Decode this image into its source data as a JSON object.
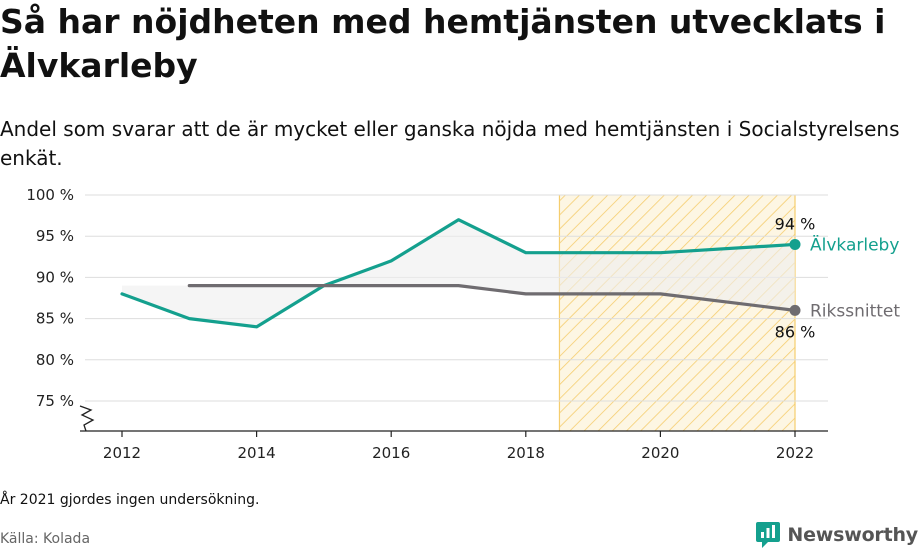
{
  "title": "Så har nöjdheten med hemtjänsten utvecklats i Älvkarleby",
  "subtitle": "Andel som svarar att de är mycket eller ganska nöjda med hemtjänsten i Socialstyrelsens enkät.",
  "note": "År 2021 gjordes ingen undersökning.",
  "source": "Källa: Kolada",
  "brand": "Newsworthy",
  "colors": {
    "alvkarleby": "#14a08e",
    "riket": "#6f6c70",
    "fill": "#eeeeee",
    "highlight_stripe": "#f5cd6e",
    "highlight_bg": "#fdf6e3",
    "grid": "#dddddd",
    "axis": "#222222"
  },
  "chart_data": {
    "type": "line",
    "x_ticks": [
      2012,
      2014,
      2016,
      2018,
      2020,
      2022
    ],
    "y_ticks": [
      75,
      80,
      85,
      90,
      95,
      100
    ],
    "y_tick_labels": [
      "75 %",
      "80 %",
      "85 %",
      "90 %",
      "95 %",
      "100 %"
    ],
    "xlim": [
      2012,
      2022
    ],
    "ylim": [
      72,
      100
    ],
    "axis_break": true,
    "grid": true,
    "highlight_range": [
      2018.5,
      2022
    ],
    "series": [
      {
        "name": "Älvkarleby",
        "key": "alvkarleby",
        "x": [
          2012,
          2013,
          2014,
          2015,
          2016,
          2017,
          2018,
          2019,
          2020,
          2022
        ],
        "values": [
          88,
          85,
          84,
          89,
          92,
          97,
          93,
          93,
          93,
          94
        ],
        "end_label": "94 %"
      },
      {
        "name": "Rikssnittet",
        "key": "riket",
        "x": [
          2013,
          2014,
          2015,
          2016,
          2017,
          2018,
          2019,
          2020,
          2022
        ],
        "values": [
          89,
          89,
          89,
          89,
          89,
          88,
          88,
          88,
          86
        ],
        "end_label": "86 %"
      }
    ]
  }
}
